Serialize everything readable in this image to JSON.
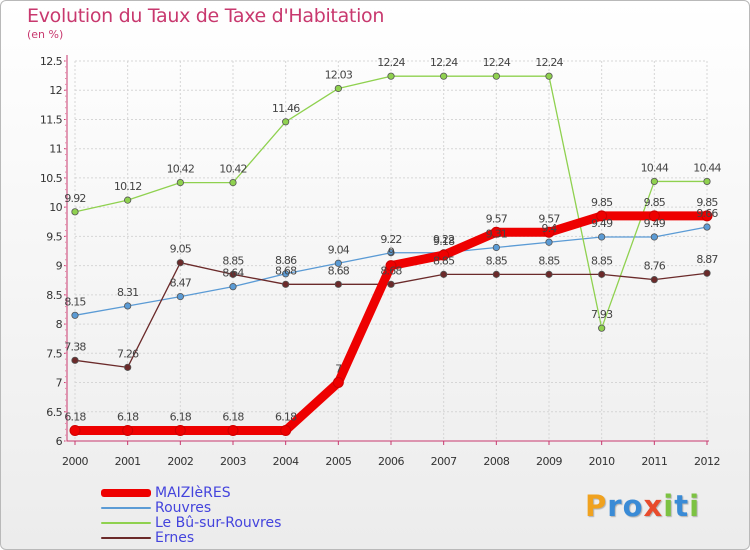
{
  "header": {
    "title": "Evolution du Taux de Taxe d'Habitation",
    "unit": "(en %)"
  },
  "brand": {
    "letters": [
      "P",
      "r",
      "o",
      "x",
      "i",
      "t",
      "i"
    ],
    "colors": [
      "#f0a21f",
      "#3a8bd6",
      "#3a8bd6",
      "#e84b2c",
      "#7cc242",
      "#3a8bd6",
      "#7cc242"
    ]
  },
  "chart_data": {
    "type": "line",
    "categories": [
      "2000",
      "2001",
      "2002",
      "2003",
      "2004",
      "2005",
      "2006",
      "2007",
      "2008",
      "2009",
      "2010",
      "2011",
      "2012"
    ],
    "ylim": [
      6,
      12.5
    ],
    "yticks": [
      "6",
      "6.5",
      "7",
      "7.5",
      "8",
      "8.5",
      "9",
      "9.5",
      "10",
      "10.5",
      "11",
      "11.5",
      "12",
      "12.5"
    ],
    "grid": true,
    "legend_position": "bottom-left",
    "series": [
      {
        "name": "MAIZIèRES",
        "color": "#ee0000",
        "values": [
          6.18,
          6.18,
          6.18,
          6.18,
          6.18,
          7,
          9,
          9.18,
          9.57,
          9.57,
          9.85,
          9.85,
          9.85
        ],
        "labels": [
          "6.18",
          "6.18",
          "6.18",
          "6.18",
          "6.18",
          "7",
          "9",
          "9.18",
          "9.57",
          "9.57",
          "9.85",
          "9.85",
          "9.85"
        ]
      },
      {
        "name": "Rouvres",
        "color": "#5b9bd5",
        "values": [
          8.15,
          8.31,
          8.47,
          8.64,
          8.86,
          9.04,
          9.22,
          9.22,
          9.31,
          9.4,
          9.49,
          9.49,
          9.66
        ],
        "labels": [
          "8.15",
          "8.31",
          "8.47",
          "8.64",
          "8.86",
          "9.04",
          "9.22",
          "9.22",
          "9.31",
          "9.4",
          "9.49",
          "9.49",
          "9.66"
        ]
      },
      {
        "name": "Le Bû-sur-Rouvres",
        "color": "#8fd14f",
        "values": [
          9.92,
          10.12,
          10.42,
          10.42,
          11.46,
          12.03,
          12.24,
          12.24,
          12.24,
          12.24,
          7.93,
          10.44,
          10.44
        ],
        "labels": [
          "9.92",
          "10.12",
          "10.42",
          "10.42",
          "11.46",
          "12.03",
          "12.24",
          "12.24",
          "12.24",
          "12.24",
          "7.93",
          "10.44",
          "10.44"
        ]
      },
      {
        "name": "Ernes",
        "color": "#6b2a2a",
        "values": [
          7.38,
          7.26,
          9.05,
          8.85,
          8.68,
          8.68,
          8.68,
          8.85,
          8.85,
          8.85,
          8.85,
          8.76,
          8.87
        ],
        "labels": [
          "7.38",
          "7.26",
          "9.05",
          "8.85",
          "8.68",
          "8.68",
          "8.68",
          "8.85",
          "8.85",
          "8.85",
          "8.85",
          "8.76",
          "8.87"
        ]
      }
    ]
  }
}
